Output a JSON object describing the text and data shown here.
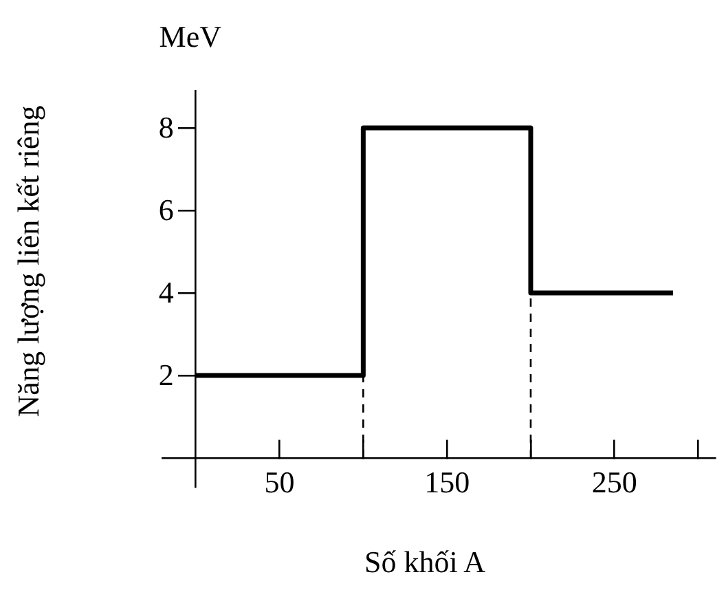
{
  "chart_data": {
    "type": "step",
    "xlabel": "Số khối A",
    "ylabel": "Năng lượng liên kết riêng",
    "annotations": [
      "MeV"
    ],
    "x": [
      0,
      100,
      200,
      285
    ],
    "series": [
      {
        "color": "#000000",
        "values": [
          2,
          8,
          4,
          4
        ]
      }
    ],
    "xlim": [
      -20,
      310
    ],
    "xticks": [
      {
        "value": 50,
        "label": "50"
      },
      {
        "value": 100,
        "label": null
      },
      {
        "value": 150,
        "label": "150"
      },
      {
        "value": 200,
        "label": null
      },
      {
        "value": 250,
        "label": "250"
      },
      {
        "value": 300,
        "label": null
      }
    ],
    "ylim": [
      -0.7,
      8.9
    ],
    "yticks": [
      2,
      4,
      6,
      8
    ],
    "ref_lines": [
      {
        "axis": "x",
        "value": 100,
        "line_style": "dashed",
        "color": "#000000"
      },
      {
        "axis": "x",
        "value": 200,
        "line_style": "dashed",
        "color": "#000000"
      }
    ],
    "grid": false,
    "legend": false
  }
}
